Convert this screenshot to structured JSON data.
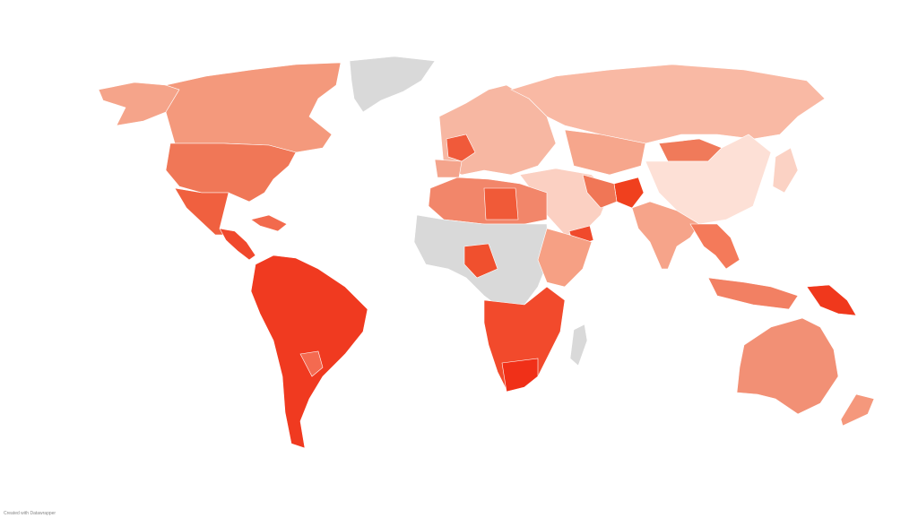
{
  "attribution": "Created with Datawrapper"
}
